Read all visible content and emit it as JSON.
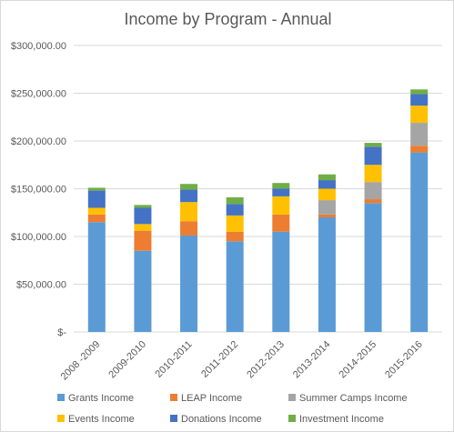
{
  "chart_data": {
    "type": "bar",
    "stacked": true,
    "title": "Income by Program - Annual",
    "xlabel": "",
    "ylabel": "",
    "ylim": [
      0,
      300000
    ],
    "y_ticks": [
      0,
      50000,
      100000,
      150000,
      200000,
      250000,
      300000
    ],
    "y_tick_labels": [
      "$-",
      "$50,000.00",
      "$100,000.00",
      "$150,000.00",
      "$200,000.00",
      "$250,000.00",
      "$300,000.00"
    ],
    "grid": true,
    "legend_position": "bottom",
    "categories": [
      "2008 -2009",
      "2009-2010",
      "2010-2011",
      "2011-2012",
      "2012-2013",
      "2013-2014",
      "2014-2015",
      "2015-2016"
    ],
    "series": [
      {
        "name": "Grants Income",
        "color": "#5b9bd5",
        "values": [
          115000,
          85000,
          101000,
          95000,
          105000,
          120000,
          135000,
          188000
        ]
      },
      {
        "name": "LEAP Income",
        "color": "#ed7d31",
        "values": [
          8000,
          21000,
          15000,
          10000,
          18000,
          3000,
          4000,
          7000
        ]
      },
      {
        "name": "Summer Camps Income",
        "color": "#a5a5a5",
        "values": [
          0,
          0,
          0,
          0,
          0,
          15000,
          18000,
          24000
        ]
      },
      {
        "name": "Events Income",
        "color": "#ffc000",
        "values": [
          7000,
          7000,
          20000,
          17000,
          19000,
          12000,
          18000,
          18000
        ]
      },
      {
        "name": "Donations Income",
        "color": "#4472c4",
        "values": [
          18000,
          17000,
          13000,
          12000,
          8000,
          9000,
          19000,
          12000
        ]
      },
      {
        "name": "Investment Income",
        "color": "#70ad47",
        "values": [
          3000,
          3000,
          6000,
          7000,
          6000,
          6000,
          4000,
          5000
        ]
      }
    ]
  }
}
